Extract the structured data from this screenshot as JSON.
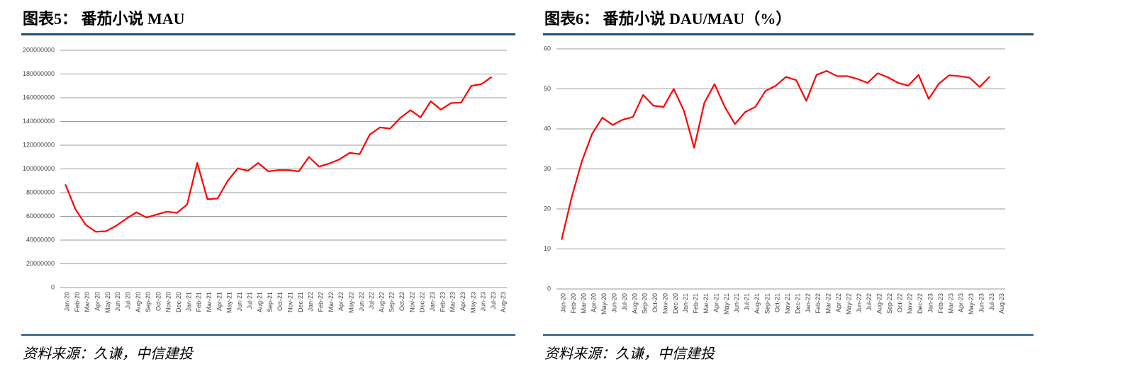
{
  "chart_data": [
    {
      "type": "line",
      "title": "图表5： 番茄小说 MAU",
      "source": "资料来源：久谦，中信建投",
      "categories": [
        "Jan-20",
        "Feb-20",
        "Mar-20",
        "Apr-20",
        "May-20",
        "Jun-20",
        "Jul-20",
        "Aug-20",
        "Sep-20",
        "Oct-20",
        "Nov-20",
        "Dec-20",
        "Jan-21",
        "Feb-21",
        "Mar-21",
        "Apr-21",
        "May-21",
        "Jun-21",
        "Jul-21",
        "Aug-21",
        "Sep-21",
        "Oct-21",
        "Nov-21",
        "Dec-21",
        "Jan-22",
        "Feb-22",
        "Mar-22",
        "Apr-22",
        "May-22",
        "Jun-22",
        "Jul-22",
        "Aug-22",
        "Sep-22",
        "Oct-22",
        "Nov-22",
        "Dec-22",
        "Jan-23",
        "Feb-23",
        "Mar-23",
        "Apr-23",
        "May-23",
        "Jun-23",
        "Jul-23",
        "Aug-23"
      ],
      "series": [
        {
          "name": "MAU",
          "color": "#ff0000",
          "values": [
            87000000,
            66000000,
            53000000,
            47000000,
            47500000,
            52000000,
            58000000,
            63500000,
            59000000,
            61500000,
            64000000,
            63000000,
            70000000,
            105000000,
            74500000,
            75000000,
            90000000,
            100500000,
            98500000,
            105000000,
            98000000,
            99000000,
            99000000,
            98000000,
            110000000,
            102000000,
            104500000,
            108000000,
            113500000,
            112500000,
            129000000,
            135000000,
            134000000,
            143000000,
            149500000,
            143500000,
            157000000,
            150000000,
            155500000,
            156000000,
            170000000,
            171500000,
            177500000,
            null
          ]
        }
      ],
      "ylim": [
        0,
        200000000
      ],
      "yticks": [
        0,
        20000000,
        40000000,
        60000000,
        80000000,
        100000000,
        120000000,
        140000000,
        160000000,
        180000000,
        200000000
      ],
      "grid": true
    },
    {
      "type": "line",
      "title": "图表6： 番茄小说 DAU/MAU（%）",
      "source": "资料来源：久谦，中信建投",
      "categories": [
        "Jan-20",
        "Feb-20",
        "Mar-20",
        "Apr-20",
        "May-20",
        "Jun-20",
        "Jul-20",
        "Aug-20",
        "Sep-20",
        "Oct-20",
        "Nov-20",
        "Dec-20",
        "Jan-21",
        "Feb-21",
        "Mar-21",
        "Apr-21",
        "May-21",
        "Jun-21",
        "Jul-21",
        "Aug-21",
        "Sep-21",
        "Oct-21",
        "Nov-21",
        "Dec-21",
        "Jan-22",
        "Feb-22",
        "Mar-22",
        "Apr-22",
        "May-22",
        "Jun-22",
        "Jul-22",
        "Aug-22",
        "Sep-22",
        "Oct-22",
        "Nov-22",
        "Dec-22",
        "Jan-23",
        "Feb-23",
        "Mar-23",
        "Apr-23",
        "May-23",
        "Jun-23",
        "Jul-23",
        "Aug-23"
      ],
      "series": [
        {
          "name": "DAU/MAU",
          "color": "#ff0000",
          "values": [
            12.3,
            23,
            32,
            38.8,
            42.8,
            41,
            42.3,
            43,
            48.5,
            45.8,
            45.5,
            50,
            44.5,
            35.3,
            46.5,
            51.2,
            45.5,
            41.2,
            44.2,
            45.5,
            49.5,
            50.8,
            53,
            52.2,
            47,
            53.5,
            54.5,
            53.2,
            53.2,
            52.5,
            51.5,
            53.9,
            52.9,
            51.5,
            50.8,
            53.5,
            47.5,
            51.3,
            53.4,
            53.2,
            52.8,
            50.5,
            53.1,
            null
          ]
        }
      ],
      "ylim": [
        0,
        60
      ],
      "yticks": [
        0,
        10,
        20,
        30,
        40,
        50,
        60
      ],
      "grid": true
    }
  ]
}
